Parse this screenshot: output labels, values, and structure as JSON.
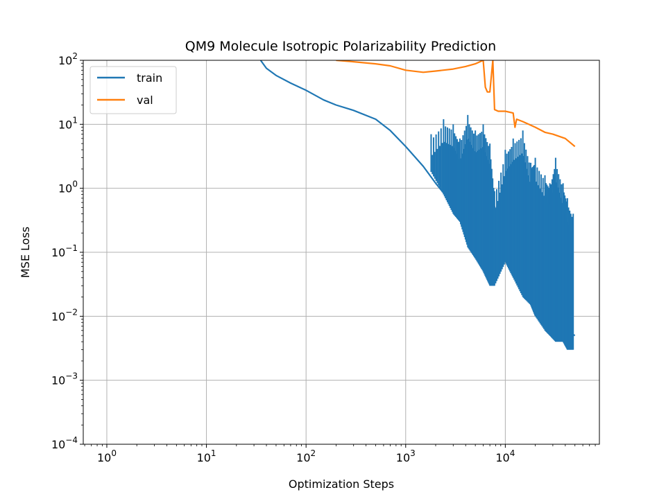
{
  "chart_data": {
    "type": "line",
    "title": "QM9 Molecule Isotropic Polarizability Prediction",
    "xlabel": "Optimization Steps",
    "ylabel": "MSE Loss",
    "xscale": "log",
    "yscale": "log",
    "xlim": [
      0.58,
      88000
    ],
    "ylim": [
      0.0001,
      100
    ],
    "x_ticks": [
      {
        "base": "10",
        "exp": "0",
        "value": 1
      },
      {
        "base": "10",
        "exp": "1",
        "value": 10
      },
      {
        "base": "10",
        "exp": "2",
        "value": 100
      },
      {
        "base": "10",
        "exp": "3",
        "value": 1000
      },
      {
        "base": "10",
        "exp": "4",
        "value": 10000
      }
    ],
    "y_ticks": [
      {
        "base": "10",
        "exp": "−4",
        "value": 0.0001
      },
      {
        "base": "10",
        "exp": "−3",
        "value": 0.001
      },
      {
        "base": "10",
        "exp": "−2",
        "value": 0.01
      },
      {
        "base": "10",
        "exp": "−1",
        "value": 0.1
      },
      {
        "base": "10",
        "exp": "0",
        "value": 1
      },
      {
        "base": "10",
        "exp": "1",
        "value": 10
      },
      {
        "base": "10",
        "exp": "2",
        "value": 100
      }
    ],
    "grid": true,
    "legend_position": "top-left",
    "series": [
      {
        "name": "train",
        "color": "#1f77b4",
        "x": [
          35,
          40,
          50,
          70,
          100,
          150,
          200,
          300,
          500,
          700,
          1000,
          1500,
          2000,
          3000,
          5000,
          7000,
          7500,
          10000,
          15000,
          20000,
          30000,
          40000,
          50000
        ],
        "y": [
          100,
          75,
          58,
          44,
          34,
          24,
          20,
          16.5,
          12,
          8,
          4.5,
          2.2,
          1.2,
          0.55,
          0.18,
          0.07,
          0.6,
          0.2,
          0.07,
          0.03,
          0.012,
          0.006,
          0.005
        ],
        "spikes": [
          {
            "x": 1800,
            "hi": 7,
            "lo": 1.8
          },
          {
            "x": 2400,
            "hi": 12,
            "lo": 0.8
          },
          {
            "x": 3000,
            "hi": 10,
            "lo": 0.4
          },
          {
            "x": 3500,
            "hi": 6,
            "lo": 0.3
          },
          {
            "x": 4200,
            "hi": 14,
            "lo": 0.12
          },
          {
            "x": 5000,
            "hi": 8,
            "lo": 0.08
          },
          {
            "x": 6000,
            "hi": 10,
            "lo": 0.05
          },
          {
            "x": 7000,
            "hi": 5,
            "lo": 0.03
          },
          {
            "x": 7800,
            "hi": 0.9,
            "lo": 0.03
          },
          {
            "x": 10000,
            "hi": 4,
            "lo": 0.07
          },
          {
            "x": 12000,
            "hi": 6,
            "lo": 0.04
          },
          {
            "x": 15000,
            "hi": 8,
            "lo": 0.02
          },
          {
            "x": 18000,
            "hi": 2.5,
            "lo": 0.015
          },
          {
            "x": 20000,
            "hi": 3,
            "lo": 0.01
          },
          {
            "x": 25000,
            "hi": 1.6,
            "lo": 0.006
          },
          {
            "x": 28000,
            "hi": 1.2,
            "lo": 0.005
          },
          {
            "x": 32000,
            "hi": 3,
            "lo": 0.004
          },
          {
            "x": 38000,
            "hi": 1.2,
            "lo": 0.004
          },
          {
            "x": 42000,
            "hi": 0.7,
            "lo": 0.003
          },
          {
            "x": 48000,
            "hi": 0.4,
            "lo": 0.003
          }
        ]
      },
      {
        "name": "val",
        "color": "#ff7f0e",
        "x": [
          200,
          300,
          500,
          700,
          1000,
          1500,
          2000,
          3000,
          4000,
          5000,
          6000,
          6300,
          6600,
          7000,
          7500,
          7800,
          8500,
          10000,
          12000,
          12500,
          13000,
          15000,
          20000,
          25000,
          30000,
          40000,
          50000
        ],
        "y": [
          100,
          95,
          88,
          82,
          70,
          65,
          68,
          73,
          80,
          88,
          100,
          38,
          32,
          32,
          100,
          17,
          16,
          16,
          15,
          9,
          12,
          11,
          9,
          7.5,
          7,
          6,
          4.5
        ]
      }
    ]
  }
}
